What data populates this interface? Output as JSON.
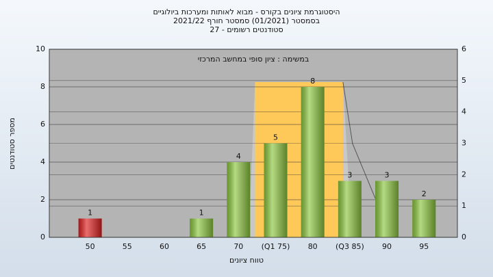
{
  "chart_data": {
    "type": "bar",
    "title": "היסטוגרמת ציונים בקורס - מבוא לאותות ומערכות ביולוגיים",
    "subtitle": "בסמסטר  (01/2021)  סמסטר חורף 2021/22",
    "subtitle2": "סטודנטים רשומים - 27",
    "annotation": "במשימה : ציון סופי במחשב המרכזי",
    "x_label": "טווח ציונים",
    "y_label": "מספר סטודנטים",
    "categories": [
      "50",
      "55",
      "60",
      "65",
      "70",
      "(Q1 75)",
      "80",
      "(Q3 85)",
      "90",
      "95"
    ],
    "values": [
      1,
      0,
      0,
      1,
      4,
      5,
      8,
      3,
      3,
      2
    ],
    "colors": [
      "#e02020",
      "#8cc63f",
      "#8cc63f",
      "#8cc63f",
      "#8cc63f",
      "#8cc63f",
      "#8cc63f",
      "#8cc63f",
      "#8cc63f",
      "#8cc63f"
    ],
    "ylim": [
      0,
      10
    ],
    "yticks": [
      0,
      2,
      4,
      6,
      8,
      10
    ],
    "y2lim": [
      0,
      6
    ],
    "y2ticks": [
      0,
      1,
      2,
      3,
      4,
      5,
      6
    ],
    "grid": true
  }
}
